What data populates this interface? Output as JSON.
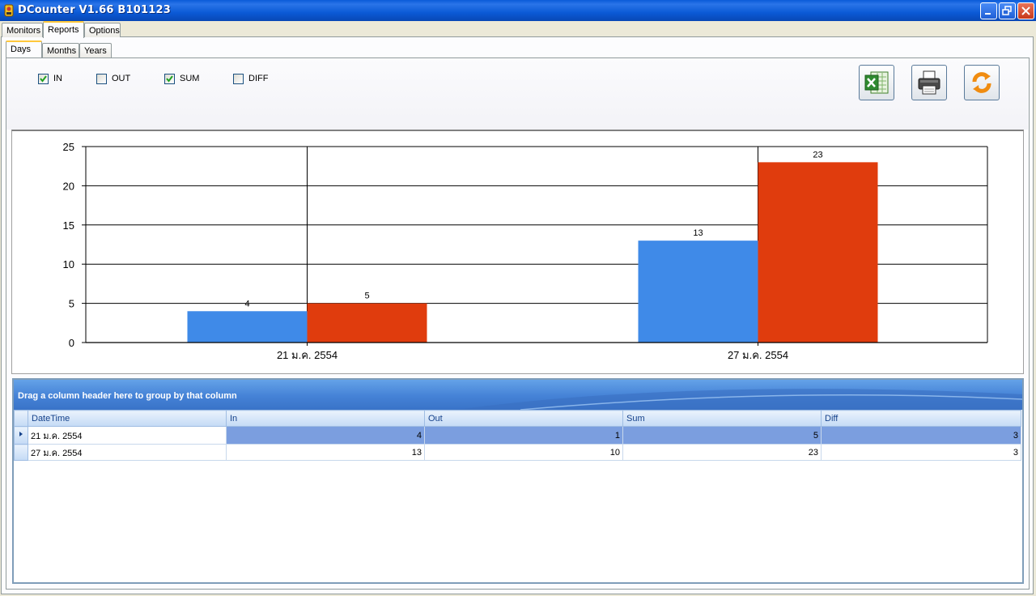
{
  "window": {
    "title": "DCounter V1.66  B101123",
    "app_icon": "dcounter-icon"
  },
  "main_tabs": [
    {
      "label": "Monitors",
      "active": false
    },
    {
      "label": "Reports",
      "active": true
    },
    {
      "label": "Options",
      "active": false
    }
  ],
  "report_tabs": [
    {
      "label": "Days",
      "active": true
    },
    {
      "label": "Months",
      "active": false
    },
    {
      "label": "Years",
      "active": false
    }
  ],
  "filters": [
    {
      "label": "IN",
      "checked": true
    },
    {
      "label": "OUT",
      "checked": false
    },
    {
      "label": "SUM",
      "checked": true
    },
    {
      "label": "DIFF",
      "checked": false
    }
  ],
  "toolbar": {
    "excel_icon": "excel-export-icon",
    "print_icon": "printer-icon",
    "refresh_icon": "refresh-icon"
  },
  "chart_data": {
    "type": "bar",
    "categories": [
      "21 ม.ค.  2554",
      "27 ม.ค.  2554"
    ],
    "series": [
      {
        "values": [
          4,
          13
        ],
        "color": "#3f8ae8"
      },
      {
        "values": [
          5,
          23
        ],
        "color": "#e03c0d"
      }
    ],
    "data_labels": true,
    "ylim": [
      0,
      25
    ],
    "yticks": [
      0,
      5,
      10,
      15,
      20,
      25
    ],
    "grid": true,
    "legend": "none"
  },
  "grid": {
    "group_panel_text": "Drag a column header here to group by that column",
    "columns": [
      "DateTime",
      "In",
      "Out",
      "Sum",
      "Diff"
    ],
    "rows": [
      {
        "cells": [
          "21 ม.ค. 2554",
          "4",
          "1",
          "5",
          "3"
        ],
        "selected": true
      },
      {
        "cells": [
          "27 ม.ค. 2554",
          "13",
          "10",
          "23",
          "3"
        ],
        "selected": false
      }
    ],
    "colors": {
      "header": "#c4daf5",
      "selected_row": "#7b9edf",
      "group_panel": "#4582d6"
    }
  }
}
